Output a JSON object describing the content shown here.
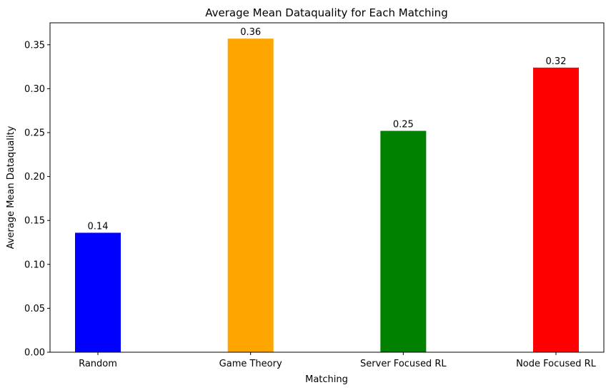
{
  "chart_data": {
    "type": "bar",
    "title": "Average Mean Dataquality for Each Matching",
    "xlabel": "Matching",
    "ylabel": "Average Mean Dataquality",
    "categories": [
      "Random",
      "Game Theory",
      "Server Focused RL",
      "Node Focused RL"
    ],
    "values": [
      0.136,
      0.357,
      0.252,
      0.324
    ],
    "value_labels": [
      "0.14",
      "0.36",
      "0.25",
      "0.32"
    ],
    "colors": [
      "#0000ff",
      "#ffa500",
      "#008000",
      "#ff0000"
    ],
    "ylim": [
      0,
      0.375
    ],
    "yticks": [
      0.0,
      0.05,
      0.1,
      0.15,
      0.2,
      0.25,
      0.3,
      0.35
    ],
    "ytick_labels": [
      "0.00",
      "0.05",
      "0.10",
      "0.15",
      "0.20",
      "0.25",
      "0.30",
      "0.35"
    ],
    "grid": false,
    "legend": "none"
  }
}
